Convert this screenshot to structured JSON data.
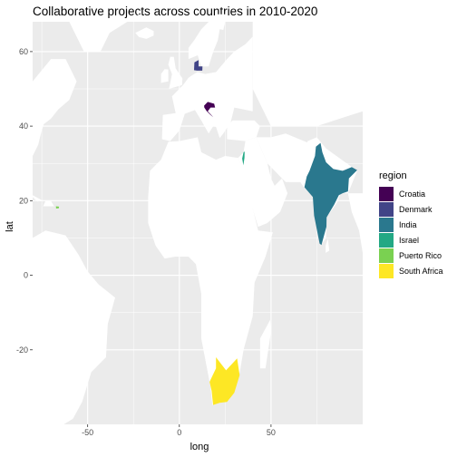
{
  "chart_data": {
    "type": "map",
    "title": "Collaborative projects across countries in 2010-2020",
    "xlabel": "long",
    "ylabel": "lat",
    "xlim": [
      -80,
      100
    ],
    "ylim": [
      -40,
      68
    ],
    "x_ticks": [
      {
        "value": -50,
        "label": "-50"
      },
      {
        "value": 0,
        "label": "0"
      },
      {
        "value": 50,
        "label": "50"
      }
    ],
    "y_ticks": [
      {
        "value": -20,
        "label": "-20"
      },
      {
        "value": 0,
        "label": "0"
      },
      {
        "value": 20,
        "label": "20"
      },
      {
        "value": 40,
        "label": "40"
      },
      {
        "value": 60,
        "label": "60"
      }
    ],
    "grid": true,
    "legend": {
      "title": "region",
      "position": "right",
      "entries": [
        {
          "name": "Croatia",
          "color": "#440154"
        },
        {
          "name": "Denmark",
          "color": "#414487"
        },
        {
          "name": "India",
          "color": "#2A788E"
        },
        {
          "name": "Israel",
          "color": "#22A884"
        },
        {
          "name": "Puerto Rico",
          "color": "#7AD151"
        },
        {
          "name": "South Africa",
          "color": "#FDE725"
        }
      ]
    },
    "colors": {
      "panel_background": "#EBEBEB",
      "gridline": "#FFFFFF",
      "land": "#FFFFFF"
    },
    "regions": [
      {
        "name": "Croatia",
        "center": [
          16.4,
          45.1
        ]
      },
      {
        "name": "Denmark",
        "center": [
          10.0,
          56.0
        ]
      },
      {
        "name": "India",
        "center": [
          78.9,
          22.5
        ]
      },
      {
        "name": "Israel",
        "center": [
          35.0,
          31.5
        ]
      },
      {
        "name": "Puerto Rico",
        "center": [
          -66.5,
          18.2
        ]
      },
      {
        "name": "South Africa",
        "center": [
          24.7,
          -29.0
        ]
      }
    ]
  }
}
